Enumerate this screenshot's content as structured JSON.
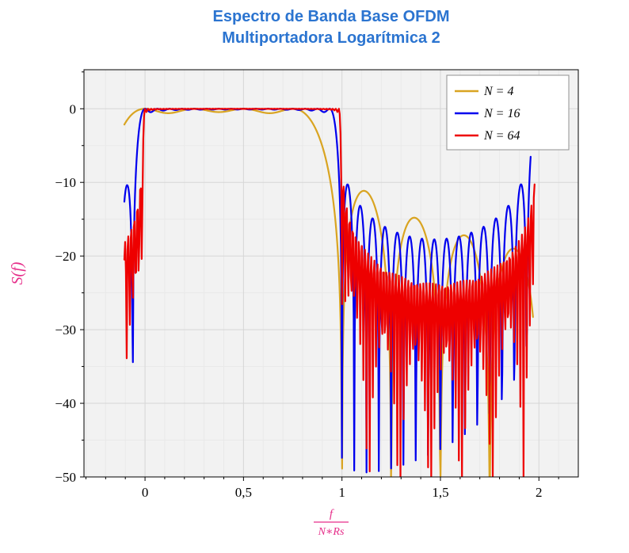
{
  "title": {
    "line1": "Espectro de Banda Base OFDM",
    "line2": "Multiportadora Logarítmica 2"
  },
  "colors": {
    "title": "#2b74d0",
    "axis_label": "#e62e8a",
    "plot_bg": "#f2f2f2",
    "grid_major": "#d6d6d6",
    "grid_minor": "#e9e9e9",
    "frame": "#000000",
    "tick_label": "#000000",
    "legend_bg": "#ffffff",
    "legend_border": "#909090",
    "series_n4": "#d9a421",
    "series_n16": "#0000ee",
    "series_n64": "#ee0000"
  },
  "chart_data": {
    "type": "line",
    "title": "Espectro de Banda Base OFDM Multiportadora Logarítmica 2",
    "ylabel": "S(f)",
    "xlabel_numerator": "f",
    "xlabel_denominator": "N∗Rs",
    "xlim": [
      -0.31,
      2.2
    ],
    "ylim": [
      -50,
      5.3
    ],
    "grid": true,
    "legend_position": "top-right",
    "x_ticks": [
      {
        "value": 0,
        "label": "0"
      },
      {
        "value": 0.5,
        "label": "0,5"
      },
      {
        "value": 1,
        "label": "1"
      },
      {
        "value": 1.5,
        "label": "1,5"
      },
      {
        "value": 2,
        "label": "2"
      }
    ],
    "y_ticks": [
      {
        "value": 0,
        "label": "0"
      },
      {
        "value": -10,
        "label": "−10"
      },
      {
        "value": -20,
        "label": "−20"
      },
      {
        "value": -30,
        "label": "−30"
      },
      {
        "value": -40,
        "label": "−40"
      },
      {
        "value": -50,
        "label": "−50"
      }
    ],
    "x_minor_step": 0.1,
    "y_minor_step": 5,
    "series": [
      {
        "name": "N = 4",
        "color": "#d9a421",
        "model": "ofdm_sinc2_sum_db",
        "subcarriers": 4,
        "x_start": -0.105,
        "x_end": 1.97,
        "samples": 760,
        "replica_period": null,
        "clip_db": -50,
        "readings_db_approx": [
          [
            -0.1,
            -2
          ],
          [
            0,
            -0.2
          ],
          [
            0.5,
            -0.2
          ],
          [
            0.8,
            -0.6
          ],
          [
            1.0,
            -20
          ],
          [
            1.07,
            -36
          ],
          [
            1.13,
            -12.8
          ],
          [
            1.27,
            -27
          ],
          [
            1.4,
            -14.5
          ],
          [
            1.52,
            -23
          ],
          [
            1.63,
            -16.5
          ],
          [
            1.75,
            -21
          ],
          [
            1.9,
            -18.8
          ]
        ]
      },
      {
        "name": "N = 16",
        "color": "#0000ee",
        "model": "ofdm_sinc2_sum_db",
        "subcarriers": 16,
        "x_start": -0.105,
        "x_end": 1.958,
        "samples": 760,
        "replica_period": 2,
        "clip_db": -50,
        "readings_db_approx": [
          [
            -0.1,
            -11.5
          ],
          [
            0.03,
            0
          ],
          [
            0.5,
            0
          ],
          [
            0.95,
            -0.2
          ],
          [
            1.02,
            -22
          ],
          [
            1.09,
            -13.8
          ],
          [
            1.25,
            -17
          ],
          [
            1.5,
            -21
          ],
          [
            1.75,
            -24
          ],
          [
            1.9,
            -30
          ],
          [
            1.97,
            -7.6
          ]
        ]
      },
      {
        "name": "N = 64",
        "color": "#ee0000",
        "model": "ofdm_sinc2_sum_db",
        "subcarriers": 64,
        "x_start": -0.105,
        "x_end": 1.978,
        "samples": 520,
        "replica_period": 2,
        "clip_db": -50,
        "readings_db_approx": [
          [
            -0.1,
            -18.5
          ],
          [
            -0.04,
            -33
          ],
          [
            0.02,
            1.5
          ],
          [
            0.5,
            0
          ],
          [
            0.97,
            0.7
          ],
          [
            1.05,
            -13.5
          ],
          [
            1.2,
            -25
          ],
          [
            1.4,
            -44
          ],
          [
            1.6,
            -33
          ],
          [
            1.8,
            -35
          ],
          [
            1.97,
            -14
          ]
        ]
      }
    ]
  },
  "legend": {
    "entries": [
      "N = 4",
      "N = 16",
      "N = 64"
    ]
  }
}
